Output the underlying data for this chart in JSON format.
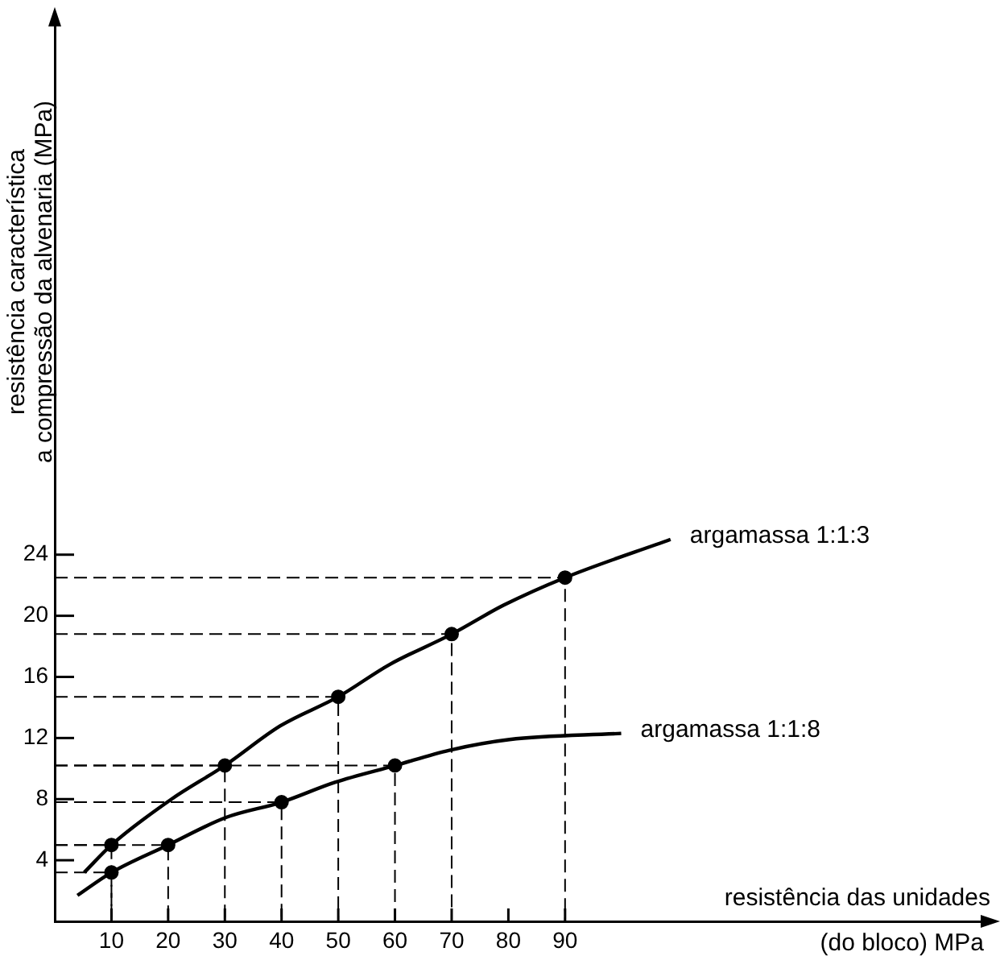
{
  "chart_data": {
    "type": "line",
    "xlabel": "resistência das unidades\n(do bloco) MPa",
    "ylabel": "resistência característica\na compressão da alvenaria (MPa)",
    "xlim": [
      0,
      165
    ],
    "ylim": [
      0,
      59
    ],
    "xticks": [
      10,
      20,
      30,
      40,
      50,
      60,
      70,
      80,
      90
    ],
    "yticks": [
      4,
      8,
      12,
      16,
      20,
      24
    ],
    "grid": false,
    "legend": false,
    "marker": "none",
    "series": [
      {
        "name": "argamassa 1:1:3",
        "color": "#000000",
        "x": [
          5.2,
          10,
          20.6,
          30,
          39.8,
          50,
          59,
          70,
          79.2,
          90,
          108.6
        ],
        "values": [
          3.2,
          5,
          8,
          10.2,
          12.8,
          14.7,
          16.8,
          18.8,
          20.7,
          22.5,
          25
        ]
      },
      {
        "name": "argamassa 1:1:8",
        "color": "#000000",
        "x": [
          4,
          10,
          20,
          30.2,
          40,
          49.4,
          60,
          69.6,
          80.2,
          99.9
        ],
        "values": [
          1.7,
          3.2,
          5,
          6.8,
          7.8,
          9.1,
          10.2,
          11.2,
          11.9,
          12.3
        ]
      },
      {
        "type": "scatter",
        "color": "#000000",
        "marker": "circle",
        "x": [
          10,
          30,
          50,
          70,
          90
        ],
        "values": [
          5,
          10.2,
          14.7,
          18.8,
          22.5
        ]
      },
      {
        "type": "scatter",
        "color": "#000000",
        "marker": "circle",
        "x": [
          10,
          20,
          40,
          60
        ],
        "values": [
          3.2,
          5,
          7.8,
          10.2
        ]
      },
      {
        "color": "#000000",
        "line_style": "dashed",
        "x": [
          0,
          10,
          10
        ],
        "values": [
          5,
          5,
          0
        ]
      },
      {
        "color": "#000000",
        "line_style": "dashed",
        "x": [
          0,
          30,
          30
        ],
        "values": [
          10.2,
          10.2,
          0
        ]
      },
      {
        "color": "#000000",
        "line_style": "dashed",
        "x": [
          0,
          50,
          50
        ],
        "values": [
          14.7,
          14.7,
          0
        ]
      },
      {
        "color": "#000000",
        "line_style": "dashed",
        "x": [
          0,
          70,
          70
        ],
        "values": [
          18.8,
          18.8,
          0
        ]
      },
      {
        "color": "#000000",
        "line_style": "dashed",
        "x": [
          0,
          90,
          90
        ],
        "values": [
          22.5,
          22.5,
          0
        ]
      },
      {
        "color": "#000000",
        "line_style": "dashed",
        "x": [
          0,
          10,
          10
        ],
        "values": [
          3.2,
          3.2,
          0
        ]
      },
      {
        "color": "#000000",
        "line_style": "dashed",
        "x": [
          0,
          20,
          20
        ],
        "values": [
          5,
          5,
          0
        ]
      },
      {
        "color": "#000000",
        "line_style": "dashed",
        "x": [
          0,
          40,
          40
        ],
        "values": [
          7.8,
          7.8,
          0
        ]
      },
      {
        "color": "#000000",
        "line_style": "dashed",
        "x": [
          0,
          60,
          60
        ],
        "values": [
          10.2,
          10.2,
          0
        ]
      }
    ]
  }
}
